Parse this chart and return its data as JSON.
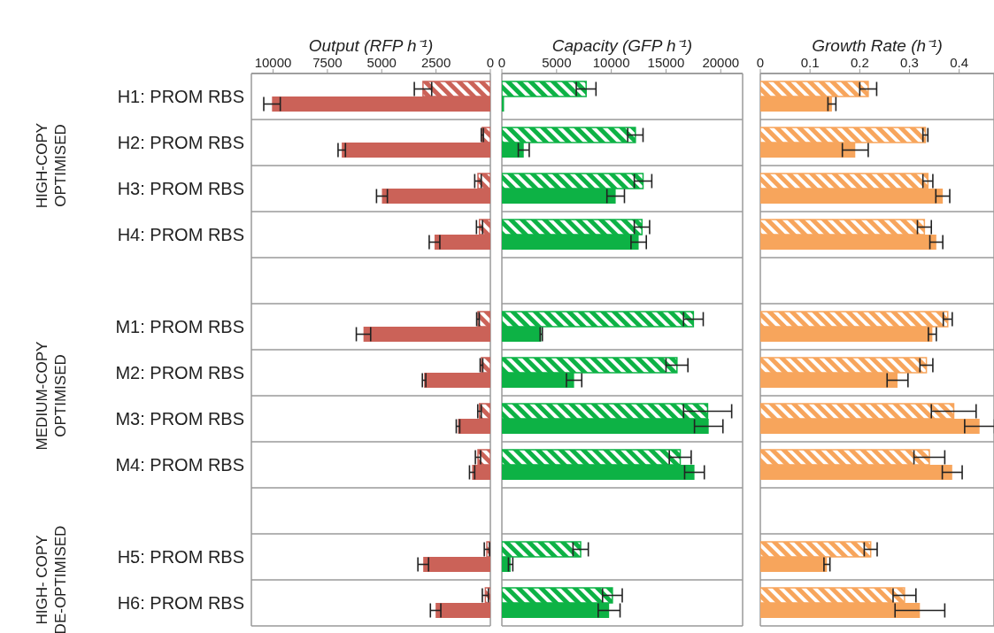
{
  "chart_data": [
    {
      "type": "bar",
      "orientation": "horizontal",
      "title": "Output (RFP h⁻¹)",
      "categories": [
        "H1: PROM RBS",
        "H2: PROM RBS",
        "H3: PROM RBS",
        "H4: PROM RBS",
        null,
        "M1: PROM RBS",
        "M2: PROM RBS",
        "M3: PROM RBS",
        "M4: PROM RBS",
        null,
        "H5: PROM RBS",
        "H6: PROM RBS"
      ],
      "series": [
        {
          "color": "#cb6258",
          "values": [
            3100,
            370,
            570,
            500,
            null,
            570,
            410,
            500,
            570,
            null,
            160,
            230
          ],
          "errors": [
            400,
            50,
            150,
            140,
            null,
            60,
            60,
            80,
            120,
            null,
            120,
            140
          ]
        },
        {
          "color": "#cb6258",
          "values": [
            10050,
            6840,
            4990,
            2570,
            null,
            5840,
            3050,
            1490,
            840,
            null,
            3090,
            2520
          ],
          "errors": [
            380,
            170,
            250,
            245,
            null,
            330,
            80,
            80,
            120,
            null,
            245,
            240
          ]
        }
      ],
      "xlim": [
        11000,
        0
      ],
      "xticks": [
        10000,
        7500,
        5000,
        2500,
        0
      ],
      "grid": "y",
      "annotations": [
        "HIGH-COPY\nOPTIMISED",
        "MEDIUM-COPY\nOPTIMISED",
        "HIGH- COPY\nDE-OPTIMISED"
      ]
    },
    {
      "type": "bar",
      "orientation": "horizontal",
      "title": "Capacity (GFP h⁻¹)",
      "categories": [
        null,
        null,
        null,
        null,
        null,
        null,
        null,
        null,
        null,
        null,
        null,
        null
      ],
      "series": [
        {
          "color": "#0db245",
          "values": [
            7700,
            12200,
            12900,
            12800,
            null,
            17500,
            16000,
            18800,
            16300,
            null,
            7200,
            10100
          ],
          "errors": [
            900,
            700,
            800,
            700,
            null,
            900,
            1000,
            2200,
            1000,
            null,
            700,
            900
          ]
        },
        {
          "color": "#0db245",
          "values": [
            200,
            2000,
            10400,
            12500,
            null,
            3600,
            6600,
            18900,
            17600,
            null,
            800,
            9800
          ],
          "errors": [
            null,
            500,
            800,
            700,
            null,
            100,
            700,
            1300,
            900,
            null,
            200,
            1000
          ]
        }
      ],
      "xlim": [
        0,
        22000
      ],
      "xticks": [
        0,
        5000,
        10000,
        15000,
        20000
      ],
      "grid": "y",
      "tick_labels": "x"
    },
    {
      "type": "bar",
      "orientation": "horizontal",
      "title": "Growth Rate (h⁻¹)",
      "categories": [
        null,
        null,
        null,
        null,
        null,
        null,
        null,
        null,
        null,
        null,
        null,
        null
      ],
      "series": [
        {
          "color": "#f7a55c",
          "values": [
            0.217,
            0.332,
            0.337,
            0.33,
            null,
            0.377,
            0.334,
            0.389,
            0.34,
            null,
            0.222,
            0.29
          ],
          "errors": [
            0.017,
            0.005,
            0.01,
            0.014,
            null,
            0.009,
            0.013,
            0.045,
            0.031,
            null,
            0.013,
            0.023
          ]
        },
        {
          "color": "#f7a55c",
          "values": [
            0.144,
            0.191,
            0.367,
            0.354,
            null,
            0.346,
            0.276,
            0.441,
            0.386,
            null,
            0.134,
            0.321
          ],
          "errors": [
            0.008,
            0.026,
            0.014,
            0.013,
            null,
            0.008,
            0.021,
            0.03,
            0.02,
            null,
            0.006,
            0.05
          ]
        }
      ],
      "xlim": [
        0,
        0.47
      ],
      "xticks": [
        0,
        0.1,
        0.2,
        0.3,
        0.4
      ],
      "grid": "y",
      "tick_labels": "x"
    }
  ]
}
